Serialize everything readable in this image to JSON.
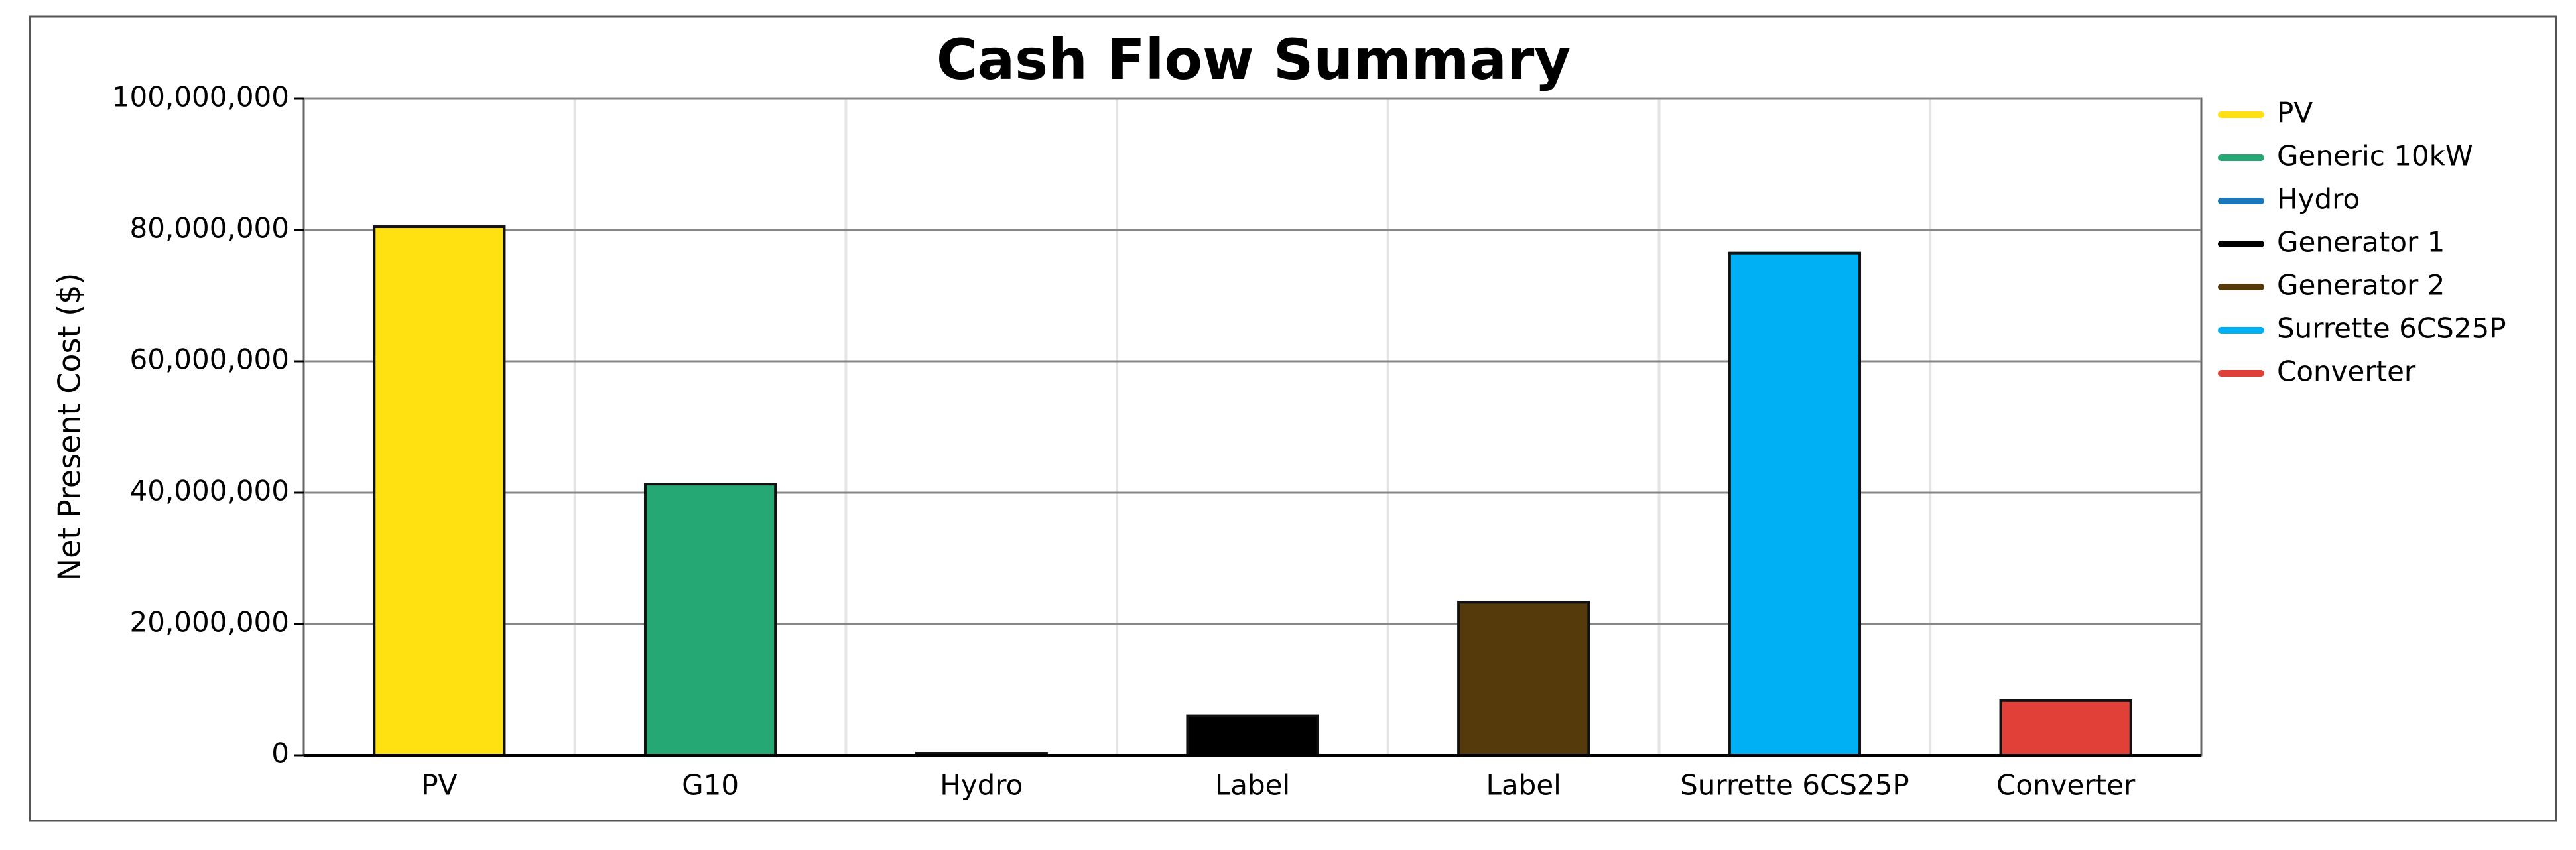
{
  "chart_data": {
    "type": "bar",
    "title": "Cash Flow Summary",
    "y_label": "Net Present Cost ($)",
    "categories": [
      "PV",
      "G10",
      "Hydro",
      "Label",
      "Label",
      "Surrette 6CS25P",
      "Converter"
    ],
    "series": [
      {
        "name": "PV",
        "color": "#ffe010",
        "values": [
          80500000,
          null,
          null,
          null,
          null,
          null,
          null
        ]
      },
      {
        "name": "Generic 10kW",
        "color": "#26a874",
        "values": [
          null,
          41300000,
          null,
          null,
          null,
          null,
          null
        ]
      },
      {
        "name": "Hydro",
        "color": "#1b77b8",
        "values": [
          null,
          null,
          300000,
          null,
          null,
          null,
          null
        ]
      },
      {
        "name": "Generator 1",
        "color": "#000000",
        "values": [
          null,
          null,
          null,
          6000000,
          null,
          null,
          null
        ]
      },
      {
        "name": "Generator 2",
        "color": "#553a0c",
        "values": [
          null,
          null,
          null,
          null,
          23300000,
          null,
          null
        ]
      },
      {
        "name": "Surrette 6CS25P",
        "color": "#00b0f5",
        "values": [
          null,
          null,
          null,
          null,
          null,
          76500000,
          null
        ]
      },
      {
        "name": "Converter",
        "color": "#e04038",
        "values": [
          null,
          null,
          null,
          null,
          null,
          null,
          8300000
        ]
      }
    ],
    "ylim": [
      0,
      100000000
    ],
    "yticks": [
      0,
      {
        "value": 20000000,
        "label": "20,000,000"
      },
      {
        "value": 40000000,
        "label": "40,000,000"
      },
      {
        "value": 60000000,
        "label": "60,000,000"
      },
      {
        "value": 80000000,
        "label": "80,000,000"
      },
      {
        "value": 100000000,
        "label": "100,000,000"
      }
    ],
    "grid": true,
    "legend": "right"
  }
}
